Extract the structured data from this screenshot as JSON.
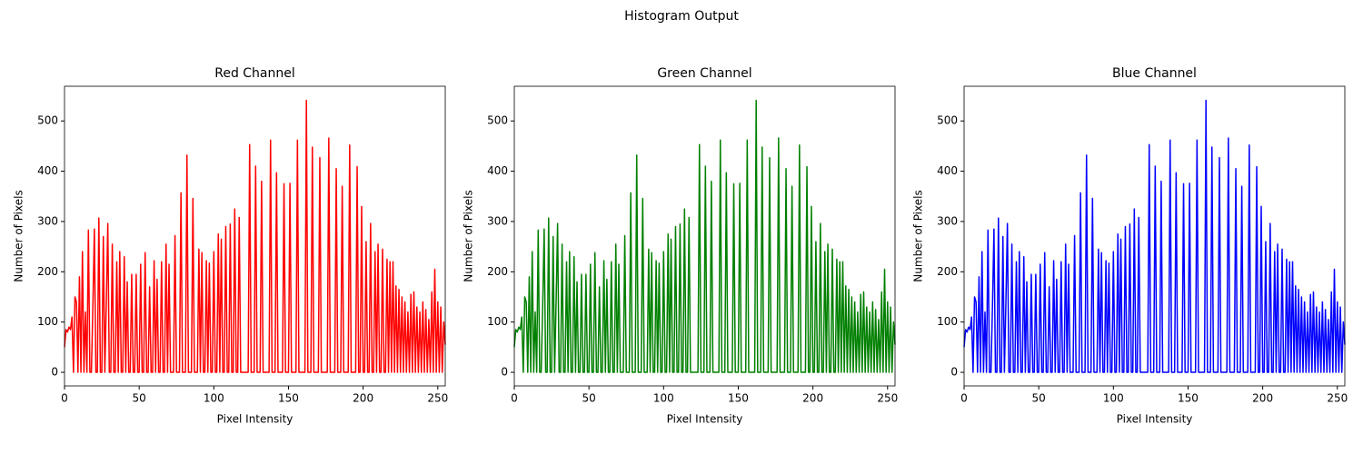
{
  "title": "Histogram Output",
  "chart_data": [
    {
      "type": "line",
      "title": "Red Channel",
      "xlabel": "Pixel Intensity",
      "ylabel": "Number of Pixels",
      "color": "#ff0000",
      "xlim": [
        0,
        255
      ],
      "ylim": [
        -27,
        569
      ],
      "xticks": [
        0,
        50,
        100,
        150,
        200,
        250
      ],
      "yticks": [
        0,
        100,
        200,
        300,
        400,
        500
      ],
      "values": [
        50,
        85,
        80,
        90,
        85,
        110,
        0,
        150,
        140,
        0,
        190,
        0,
        240,
        0,
        120,
        0,
        283,
        0,
        0,
        130,
        285,
        0,
        0,
        307,
        0,
        0,
        270,
        0,
        140,
        296,
        0,
        0,
        255,
        0,
        0,
        220,
        0,
        240,
        0,
        0,
        230,
        0,
        180,
        0,
        0,
        195,
        0,
        0,
        195,
        0,
        0,
        215,
        0,
        0,
        238,
        0,
        0,
        170,
        0,
        0,
        222,
        0,
        185,
        0,
        0,
        220,
        0,
        0,
        255,
        0,
        215,
        0,
        0,
        0,
        272,
        0,
        0,
        0,
        357,
        0,
        0,
        0,
        432,
        0,
        0,
        0,
        346,
        0,
        0,
        0,
        245,
        0,
        238,
        0,
        0,
        222,
        0,
        217,
        0,
        0,
        240,
        0,
        0,
        275,
        0,
        265,
        0,
        0,
        290,
        0,
        0,
        295,
        0,
        0,
        325,
        0,
        0,
        308,
        0,
        0,
        0,
        0,
        0,
        0,
        453,
        0,
        0,
        0,
        410,
        0,
        0,
        0,
        380,
        0,
        0,
        0,
        0,
        0,
        462,
        0,
        0,
        0,
        397,
        0,
        0,
        0,
        0,
        375,
        0,
        0,
        0,
        376,
        0,
        0,
        0,
        0,
        462,
        0,
        0,
        0,
        0,
        0,
        541,
        0,
        0,
        0,
        448,
        0,
        0,
        0,
        0,
        427,
        0,
        0,
        0,
        0,
        0,
        466,
        0,
        0,
        0,
        0,
        405,
        0,
        0,
        0,
        370,
        0,
        0,
        0,
        0,
        452,
        0,
        0,
        0,
        0,
        409,
        0,
        0,
        330,
        0,
        0,
        260,
        0,
        0,
        296,
        0,
        0,
        240,
        0,
        255,
        0,
        0,
        245,
        0,
        0,
        225,
        0,
        220,
        0,
        220,
        0,
        172,
        0,
        165,
        0,
        150,
        0,
        140,
        0,
        120,
        0,
        155,
        0,
        160,
        0,
        130,
        0,
        120,
        0,
        140,
        0,
        125,
        0,
        105,
        0,
        160,
        0,
        205,
        0,
        140,
        0,
        130,
        0,
        100,
        55
      ]
    },
    {
      "type": "line",
      "title": "Green Channel",
      "xlabel": "Pixel Intensity",
      "ylabel": "Number of Pixels",
      "color": "#008000",
      "xlim": [
        0,
        255
      ],
      "ylim": [
        -27,
        569
      ],
      "xticks": [
        0,
        50,
        100,
        150,
        200,
        250
      ],
      "yticks": [
        0,
        100,
        200,
        300,
        400,
        500
      ],
      "values": [
        50,
        85,
        80,
        90,
        85,
        110,
        0,
        150,
        140,
        0,
        190,
        0,
        240,
        0,
        120,
        0,
        283,
        0,
        0,
        130,
        285,
        0,
        0,
        307,
        0,
        0,
        270,
        0,
        140,
        296,
        0,
        0,
        255,
        0,
        0,
        220,
        0,
        240,
        0,
        0,
        230,
        0,
        180,
        0,
        0,
        195,
        0,
        0,
        195,
        0,
        0,
        215,
        0,
        0,
        238,
        0,
        0,
        170,
        0,
        0,
        222,
        0,
        185,
        0,
        0,
        220,
        0,
        0,
        255,
        0,
        215,
        0,
        0,
        0,
        272,
        0,
        0,
        0,
        357,
        0,
        0,
        0,
        432,
        0,
        0,
        0,
        346,
        0,
        0,
        0,
        245,
        0,
        238,
        0,
        0,
        222,
        0,
        217,
        0,
        0,
        240,
        0,
        0,
        275,
        0,
        265,
        0,
        0,
        290,
        0,
        0,
        295,
        0,
        0,
        325,
        0,
        0,
        308,
        0,
        0,
        0,
        0,
        0,
        0,
        453,
        0,
        0,
        0,
        410,
        0,
        0,
        0,
        380,
        0,
        0,
        0,
        0,
        0,
        462,
        0,
        0,
        0,
        397,
        0,
        0,
        0,
        0,
        375,
        0,
        0,
        0,
        376,
        0,
        0,
        0,
        0,
        462,
        0,
        0,
        0,
        0,
        0,
        541,
        0,
        0,
        0,
        448,
        0,
        0,
        0,
        0,
        427,
        0,
        0,
        0,
        0,
        0,
        466,
        0,
        0,
        0,
        0,
        405,
        0,
        0,
        0,
        370,
        0,
        0,
        0,
        0,
        452,
        0,
        0,
        0,
        0,
        409,
        0,
        0,
        330,
        0,
        0,
        260,
        0,
        0,
        296,
        0,
        0,
        240,
        0,
        255,
        0,
        0,
        245,
        0,
        0,
        225,
        0,
        220,
        0,
        220,
        0,
        172,
        0,
        165,
        0,
        150,
        0,
        140,
        0,
        120,
        0,
        155,
        0,
        160,
        0,
        130,
        0,
        120,
        0,
        140,
        0,
        125,
        0,
        105,
        0,
        160,
        0,
        205,
        0,
        140,
        0,
        130,
        0,
        100,
        55
      ]
    },
    {
      "type": "line",
      "title": "Blue Channel",
      "xlabel": "Pixel Intensity",
      "ylabel": "Number of Pixels",
      "color": "#0000ff",
      "xlim": [
        0,
        255
      ],
      "ylim": [
        -27,
        569
      ],
      "xticks": [
        0,
        50,
        100,
        150,
        200,
        250
      ],
      "yticks": [
        0,
        100,
        200,
        300,
        400,
        500
      ],
      "values": [
        50,
        85,
        80,
        90,
        85,
        110,
        0,
        150,
        140,
        0,
        190,
        0,
        240,
        0,
        120,
        0,
        283,
        0,
        0,
        130,
        285,
        0,
        0,
        307,
        0,
        0,
        270,
        0,
        140,
        296,
        0,
        0,
        255,
        0,
        0,
        220,
        0,
        240,
        0,
        0,
        230,
        0,
        180,
        0,
        0,
        195,
        0,
        0,
        195,
        0,
        0,
        215,
        0,
        0,
        238,
        0,
        0,
        170,
        0,
        0,
        222,
        0,
        185,
        0,
        0,
        220,
        0,
        0,
        255,
        0,
        215,
        0,
        0,
        0,
        272,
        0,
        0,
        0,
        357,
        0,
        0,
        0,
        432,
        0,
        0,
        0,
        346,
        0,
        0,
        0,
        245,
        0,
        238,
        0,
        0,
        222,
        0,
        217,
        0,
        0,
        240,
        0,
        0,
        275,
        0,
        265,
        0,
        0,
        290,
        0,
        0,
        295,
        0,
        0,
        325,
        0,
        0,
        308,
        0,
        0,
        0,
        0,
        0,
        0,
        453,
        0,
        0,
        0,
        410,
        0,
        0,
        0,
        380,
        0,
        0,
        0,
        0,
        0,
        462,
        0,
        0,
        0,
        397,
        0,
        0,
        0,
        0,
        375,
        0,
        0,
        0,
        376,
        0,
        0,
        0,
        0,
        462,
        0,
        0,
        0,
        0,
        0,
        541,
        0,
        0,
        0,
        448,
        0,
        0,
        0,
        0,
        427,
        0,
        0,
        0,
        0,
        0,
        466,
        0,
        0,
        0,
        0,
        405,
        0,
        0,
        0,
        370,
        0,
        0,
        0,
        0,
        452,
        0,
        0,
        0,
        0,
        409,
        0,
        0,
        330,
        0,
        0,
        260,
        0,
        0,
        296,
        0,
        0,
        240,
        0,
        255,
        0,
        0,
        245,
        0,
        0,
        225,
        0,
        220,
        0,
        220,
        0,
        172,
        0,
        165,
        0,
        150,
        0,
        140,
        0,
        120,
        0,
        155,
        0,
        160,
        0,
        130,
        0,
        120,
        0,
        140,
        0,
        125,
        0,
        105,
        0,
        160,
        0,
        205,
        0,
        140,
        0,
        130,
        0,
        100,
        55
      ]
    }
  ]
}
